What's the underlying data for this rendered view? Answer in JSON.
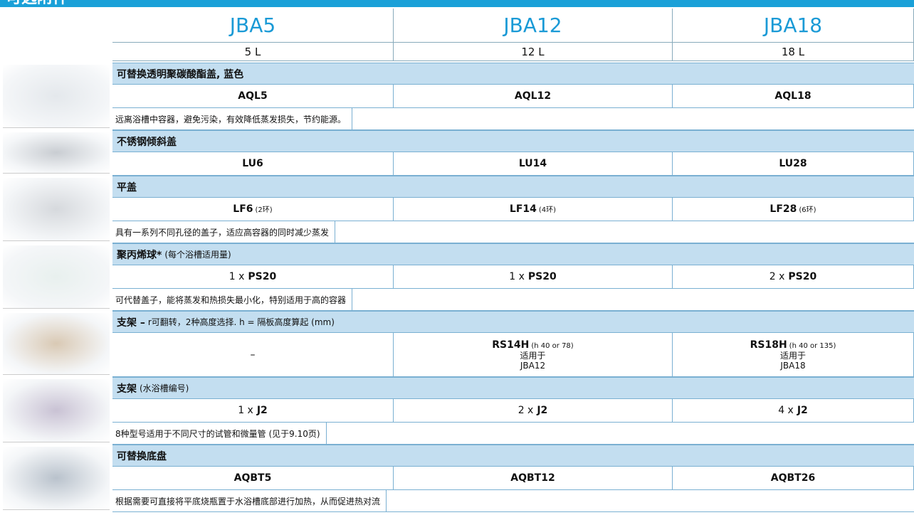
{
  "header": {
    "title": "可选附件"
  },
  "columns": [
    {
      "model": "JBA5",
      "volume": "5 L"
    },
    {
      "model": "JBA12",
      "volume": "12 L"
    },
    {
      "model": "JBA18",
      "volume": "18 L"
    }
  ],
  "sections": [
    {
      "title": "可替换透明聚碳酸酯盖, 蓝色",
      "cells": [
        {
          "code": "AQL5"
        },
        {
          "code": "AQL12"
        },
        {
          "code": "AQL18"
        }
      ],
      "description": "远离浴槽中容器，避免污染，有效降低蒸发损失，节约能源。"
    },
    {
      "title": "不锈钢倾斜盖",
      "cells": [
        {
          "code": "LU6"
        },
        {
          "code": "LU14"
        },
        {
          "code": "LU28"
        }
      ]
    },
    {
      "title": "平盖",
      "cells": [
        {
          "code": "LF6",
          "note": "(2环)"
        },
        {
          "code": "LF14",
          "note": "(4环)"
        },
        {
          "code": "LF28",
          "note": "(6环)"
        }
      ],
      "description": "具有一系列不同孔径的盖子，适应高容器的同时减少蒸发"
    },
    {
      "title": "聚丙烯球*",
      "note": "(每个浴槽适用量)",
      "cells": [
        {
          "prefix": "1 x",
          "code": "PS20"
        },
        {
          "prefix": "1 x",
          "code": "PS20"
        },
        {
          "prefix": "2 x",
          "code": "PS20"
        }
      ],
      "description": "可代替盖子，能将蒸发和热损失最小化，特别适用于高的容器"
    },
    {
      "title": "支架 –",
      "note": "r可翻转，2种高度选择. h = 隔板高度算起 (mm)",
      "cells": [
        {
          "text": "–"
        },
        {
          "code": "RS14H",
          "note": "(h 40 or 78)",
          "lines": [
            "适用于",
            "JBA12"
          ]
        },
        {
          "code": "RS18H",
          "note": "(h 40 or 135)",
          "lines": [
            "适用于",
            "JBA18"
          ]
        }
      ]
    },
    {
      "title": "支架",
      "note": "(水浴槽编号)",
      "cells": [
        {
          "prefix": "1 x",
          "code": "J2"
        },
        {
          "prefix": "2 x",
          "code": "J2"
        },
        {
          "prefix": "4 x",
          "code": "J2"
        }
      ],
      "description": "8种型号适用于不同尺寸的试管和微量管 (见于9.10页)"
    },
    {
      "title": "可替换底盘",
      "cells": [
        {
          "code": "AQBT5"
        },
        {
          "code": "AQBT12"
        },
        {
          "code": "AQBT26"
        }
      ],
      "description": "根据需要可直接将平底烧瓶置于水浴槽底部进行加热，从而促进热对流"
    }
  ]
}
